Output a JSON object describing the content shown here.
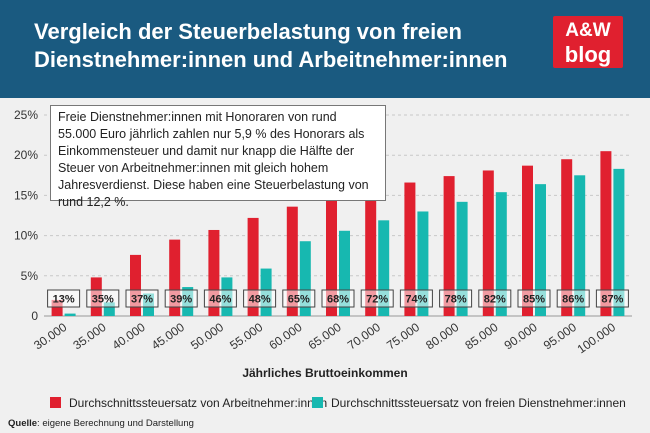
{
  "header": {
    "title_line1": "Vergleich der Steuerbelastung von freien",
    "title_line2": "Dienstnehmer:innen und Arbeitnehmer:innen",
    "logo_line1": "A&W",
    "logo_line2": "blog"
  },
  "annotation": {
    "text": "Freie Dienstnehmer:innen mit Honoraren von rund 55.000 Euro jährlich zahlen nur 5,9 % des Honorars als Einkommensteuer und damit nur knapp die Hälfte der Steuer von Arbeitnehmer:innen mit gleich hohem Jahresverdienst. Diese haben eine Steuerbelastung von rund 12,2 %."
  },
  "source": {
    "label": "Quelle",
    "text": ": eigene Berechnung und Darstellung"
  },
  "colors": {
    "header": "#1a5a80",
    "series1": "#e0202f",
    "series2": "#17b8b0",
    "logo": "#e0202f"
  },
  "chart_data": {
    "type": "bar",
    "title": "Vergleich der Steuerbelastung von freien Dienstnehmer:innen und Arbeitnehmer:innen",
    "xlabel": "Jährliches Bruttoeinkommen",
    "ylabel": "",
    "ylim": [
      0,
      25
    ],
    "yticks": [
      0,
      5,
      10,
      15,
      20,
      25
    ],
    "ytick_labels": [
      "0",
      "5%",
      "10%",
      "15%",
      "20%",
      "25%"
    ],
    "categories": [
      "30.000",
      "35.000",
      "40.000",
      "45.000",
      "50.000",
      "55.000",
      "60.000",
      "65.000",
      "70.000",
      "75.000",
      "80.000",
      "85.000",
      "90.000",
      "95.000",
      "100.000"
    ],
    "series": [
      {
        "name": "Durchschnittssteuersatz von Arbeitnehmer:innen",
        "values": [
          2.0,
          4.8,
          7.6,
          9.5,
          10.7,
          12.2,
          13.6,
          14.8,
          15.8,
          16.6,
          17.4,
          18.1,
          18.7,
          19.5,
          20.5
        ]
      },
      {
        "name": "Durchschnittssteuersatz von freien Dienstnehmer:innen",
        "values": [
          0.3,
          1.7,
          2.8,
          3.6,
          4.8,
          5.9,
          9.3,
          10.6,
          11.9,
          13.0,
          14.2,
          15.4,
          16.4,
          17.5,
          18.3
        ]
      }
    ],
    "ratio_labels": [
      "13%",
      "35%",
      "37%",
      "39%",
      "46%",
      "48%",
      "65%",
      "68%",
      "72%",
      "74%",
      "78%",
      "82%",
      "85%",
      "86%",
      "87%"
    ],
    "legend_position": "bottom"
  }
}
